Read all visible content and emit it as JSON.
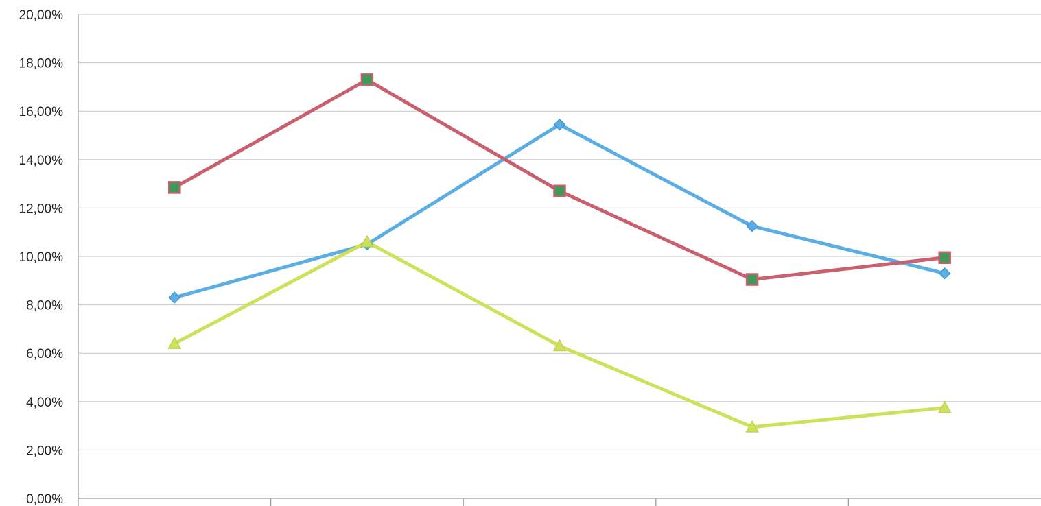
{
  "chart_data": {
    "type": "line",
    "title": "",
    "xlabel": "",
    "ylabel": "",
    "ylim": [
      0,
      20
    ],
    "y_ticks": [
      "0,00%",
      "2,00%",
      "4,00%",
      "6,00%",
      "8,00%",
      "10,00%",
      "12,00%",
      "14,00%",
      "16,00%",
      "18,00%",
      "20,00%"
    ],
    "y_tick_values": [
      0,
      2,
      4,
      6,
      8,
      10,
      12,
      14,
      16,
      18,
      20
    ],
    "grid": true,
    "legend": "none",
    "series": [
      {
        "marker": "diamond",
        "color": "#5aaee4",
        "values": [
          8.3,
          10.5,
          15.45,
          11.25,
          9.3
        ]
      },
      {
        "marker": "square",
        "color": "#c9606e",
        "marker_fill": "#3f9a5a",
        "values": [
          12.85,
          17.3,
          12.7,
          9.05,
          9.95
        ]
      },
      {
        "marker": "triangle",
        "color": "#cfe05a",
        "values": [
          6.4,
          10.6,
          6.3,
          2.95,
          3.75
        ]
      }
    ]
  }
}
